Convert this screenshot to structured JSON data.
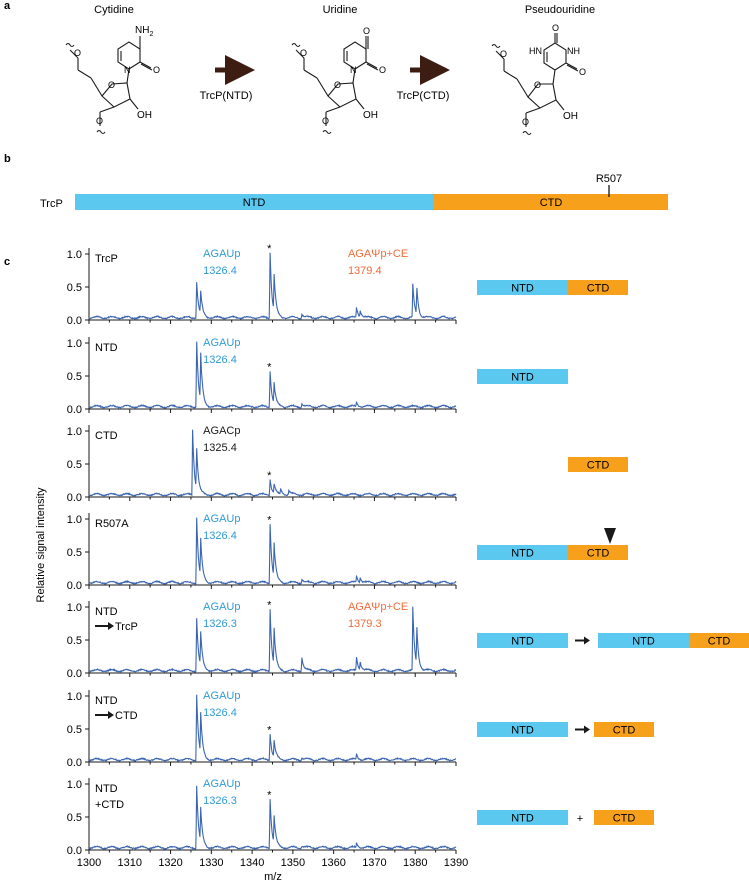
{
  "panel_labels": {
    "a": "a",
    "b": "b",
    "c": "c"
  },
  "panel_a": {
    "molecules": [
      "Cytidine",
      "Uridine",
      "Pseudouridine"
    ],
    "enzymes": [
      "TrcP(NTD)",
      "TrcP(CTD)"
    ],
    "atoms": {
      "amine": "NH",
      "amine_sub": "2",
      "oxygen": "O",
      "nitrogen": "N",
      "imide": "HN",
      "imide2": "NH",
      "hydroxyl": "OH"
    }
  },
  "panel_b": {
    "protein_label": "TrcP",
    "domains": [
      {
        "name": "NTD",
        "color": "#5bc8f0"
      },
      {
        "name": "CTD",
        "color": "#f7a01c"
      }
    ],
    "residue": "R507"
  },
  "colors": {
    "ntd": "#5bc8f0",
    "ctd": "#f7a01c",
    "spectrum": "#3b65b0",
    "uridine_label": "#2f9bd6",
    "pseudo_label": "#f26b3a",
    "arrow_brown": "#3d1c12"
  },
  "chart_data": {
    "type": "line",
    "xlabel": "m/z",
    "ylabel": "Relative signal intensity",
    "xlim": [
      1300,
      1390
    ],
    "ylim": [
      0,
      1.0
    ],
    "xticks": [
      1300,
      1310,
      1320,
      1330,
      1340,
      1350,
      1360,
      1370,
      1380,
      1390
    ],
    "yticks": [
      "0.0",
      "0.5",
      "1.0"
    ],
    "star": "*",
    "panels": [
      {
        "name": "TrcP",
        "construct": [
          "NTD",
          "CTD"
        ],
        "annotations": [
          {
            "line1": "AGAUp",
            "line2": "1326.4",
            "color": "uridine"
          },
          {
            "line1": "AGAΨp+CE",
            "line2": "1379.4",
            "color": "pseudo"
          }
        ],
        "peaks": [
          [
            1326.4,
            0.55
          ],
          [
            1327.4,
            0.33
          ],
          [
            1344.4,
            1.0
          ],
          [
            1345.4,
            0.55
          ],
          [
            1352.2,
            0.06
          ],
          [
            1365.6,
            0.15
          ],
          [
            1366.5,
            0.1
          ],
          [
            1379.4,
            0.5
          ],
          [
            1380.4,
            0.4
          ]
        ]
      },
      {
        "name": "NTD",
        "construct": [
          "NTD"
        ],
        "annotations": [
          {
            "line1": "AGAUp",
            "line2": "1326.4",
            "color": "uridine"
          }
        ],
        "peaks": [
          [
            1326.4,
            1.0
          ],
          [
            1327.4,
            0.7
          ],
          [
            1344.4,
            0.55
          ],
          [
            1345.4,
            0.3
          ],
          [
            1352.2,
            0.05
          ],
          [
            1365.6,
            0.07
          ]
        ]
      },
      {
        "name": "CTD",
        "construct": [
          "CTD"
        ],
        "annotations": [
          {
            "line1": "AGACp",
            "line2": "1325.4",
            "color": "dark"
          }
        ],
        "peaks": [
          [
            1325.4,
            1.0
          ],
          [
            1326.4,
            0.6
          ],
          [
            1344.4,
            0.24
          ],
          [
            1345.4,
            0.14
          ],
          [
            1347,
            0.08
          ],
          [
            1349,
            0.06
          ]
        ]
      },
      {
        "name": "R507A",
        "construct": [
          "NTD",
          "CTD"
        ],
        "marker": "R507A",
        "annotations": [
          {
            "line1": "AGAUp",
            "line2": "1326.4",
            "color": "uridine"
          }
        ],
        "peaks": [
          [
            1326.4,
            1.0
          ],
          [
            1327.4,
            0.55
          ],
          [
            1344.4,
            0.9
          ],
          [
            1345.4,
            0.5
          ],
          [
            1352.2,
            0.06
          ],
          [
            1365.6,
            0.1
          ],
          [
            1366.5,
            0.07
          ]
        ]
      },
      {
        "name": "NTD",
        "name2": "TrcP",
        "prefix": "arrow",
        "construct": [
          "NTD",
          "→",
          "NTD",
          "CTD"
        ],
        "annotations": [
          {
            "line1": "AGAUp",
            "line2": "1326.3",
            "color": "uridine"
          },
          {
            "line1": "AGAΨp+CE",
            "line2": "1379.3",
            "color": "pseudo"
          }
        ],
        "peaks": [
          [
            1326.4,
            0.8
          ],
          [
            1327.4,
            0.5
          ],
          [
            1344.4,
            0.95
          ],
          [
            1345.4,
            0.55
          ],
          [
            1352.2,
            0.2
          ],
          [
            1365.6,
            0.2
          ],
          [
            1366.5,
            0.12
          ],
          [
            1379.4,
            0.95
          ],
          [
            1380.4,
            0.55
          ]
        ]
      },
      {
        "name": "NTD",
        "name2": "CTD",
        "prefix": "arrow",
        "construct": [
          "NTD",
          "→",
          "CTD"
        ],
        "annotations": [
          {
            "line1": "AGAUp",
            "line2": "1326.4",
            "color": "uridine"
          }
        ],
        "peaks": [
          [
            1326.4,
            1.0
          ],
          [
            1327.4,
            0.6
          ],
          [
            1344.4,
            0.4
          ],
          [
            1345.4,
            0.25
          ],
          [
            1352.2,
            0.03
          ],
          [
            1365.6,
            0.08
          ]
        ]
      },
      {
        "name": "NTD",
        "name2": "+CTD",
        "prefix": "none",
        "construct": [
          "NTD",
          "+",
          "CTD"
        ],
        "annotations": [
          {
            "line1": "AGAUp",
            "line2": "1326.3",
            "color": "uridine"
          }
        ],
        "peaks": [
          [
            1326.4,
            0.95
          ],
          [
            1327.4,
            0.5
          ],
          [
            1344.4,
            0.75
          ],
          [
            1345.4,
            0.4
          ],
          [
            1352.2,
            0.03
          ],
          [
            1365.6,
            0.07
          ]
        ]
      }
    ]
  }
}
